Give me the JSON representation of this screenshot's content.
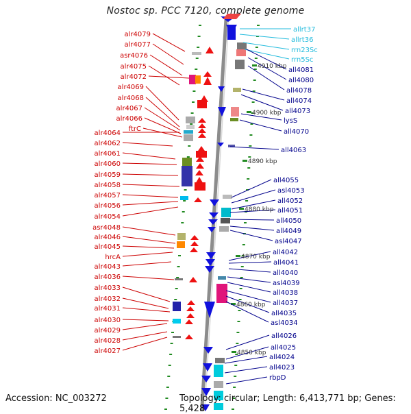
{
  "title": "Nostoc sp. PCC 7120, complete genome",
  "accession": "Accession: NC_003272",
  "topology": "Topology: circular; Length: 6,413,771 bp; Genes: 5,428",
  "colors": {
    "left_labels": "#cc0000",
    "right_labels": "#00008b",
    "rna_labels": "#22bbdd",
    "backbone": "#8c8c8c",
    "ticks": "#228b22"
  },
  "kbp_marks": [
    "4910 kbp",
    "4900 kbp",
    "4890 kbp",
    "4880 kbp",
    "4870 kbp",
    "4860 kbp",
    "4850 kbp"
  ],
  "left_genes": [
    "alr4079",
    "alr4077",
    "asr4076",
    "alr4075",
    "alr4072",
    "alr4069",
    "alr4068",
    "alr4067",
    "alr4066",
    "ftrC",
    "alr4064",
    "alr4062",
    "alr4061",
    "alr4060",
    "alr4059",
    "alr4058",
    "alr4057",
    "alr4056",
    "alr4054",
    "asr4048",
    "alr4046",
    "alr4045",
    "hrcA",
    "alr4043",
    "alr4036",
    "alr4033",
    "alr4032",
    "alr4031",
    "alr4030",
    "alr4029",
    "alr4028",
    "alr4027"
  ],
  "right_rna": [
    "allrt37",
    "allrt36",
    "rrn23Sc",
    "rrn5Sc"
  ],
  "right_genes": [
    "all4081",
    "all4080",
    "all4078",
    "all4074",
    "all4073",
    "lysS",
    "all4070",
    "all4063",
    "all4055",
    "asl4053",
    "all4052",
    "all4051",
    "all4050",
    "all4049",
    "asl4047",
    "all4042",
    "all4041",
    "all4040",
    "asl4039",
    "all4038",
    "all4037",
    "all4035",
    "asl4034",
    "all4026",
    "all4025",
    "all4024",
    "all4023",
    "rbpD"
  ]
}
